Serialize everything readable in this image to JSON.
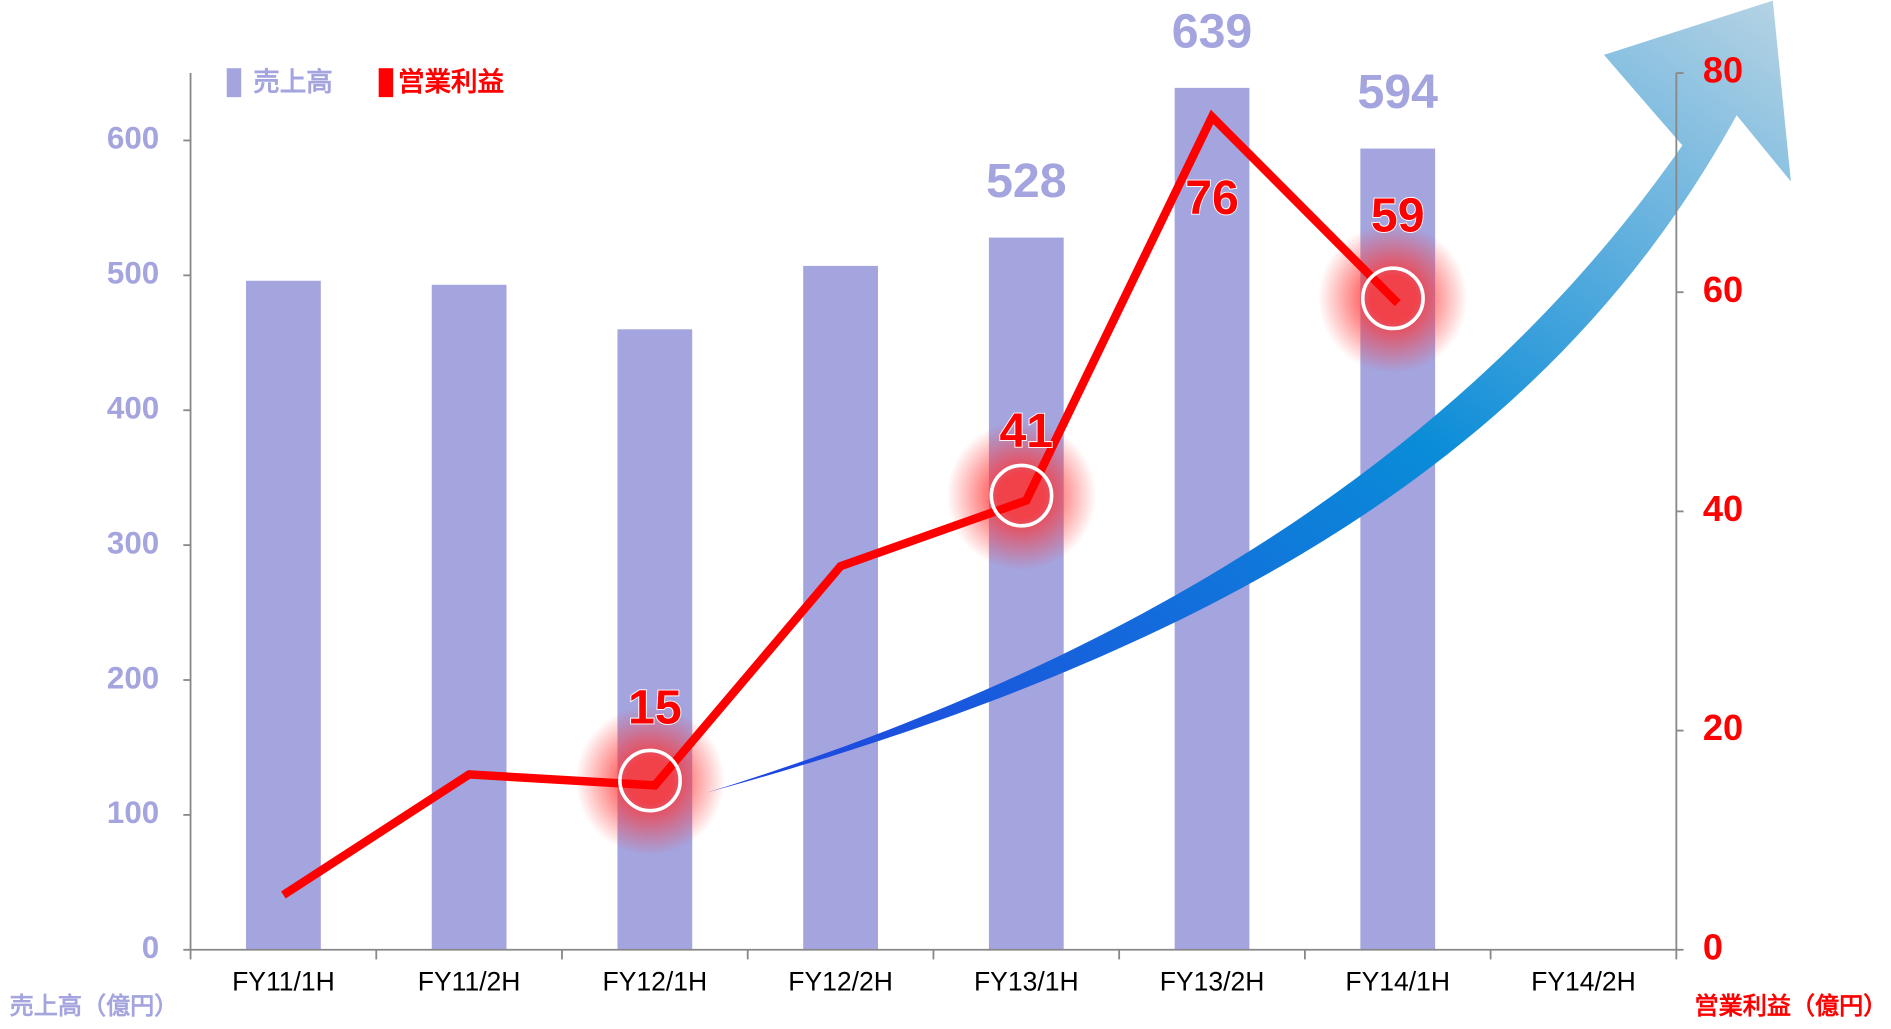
{
  "chart_data": {
    "type": "bar-line",
    "categories": [
      "FY11/1H",
      "FY11/2H",
      "FY12/1H",
      "FY12/2H",
      "FY13/1H",
      "FY13/2H",
      "FY14/1H",
      "FY14/2H"
    ],
    "series": [
      {
        "name": "売上高",
        "color": "#a4a4df",
        "type": "bar",
        "axis": "y",
        "values": [
          496,
          493,
          460,
          507,
          528,
          639,
          594,
          null
        ],
        "value_labels": [
          null,
          null,
          null,
          null,
          "528",
          "639",
          "594",
          null
        ]
      },
      {
        "name": "営業利益",
        "color": "#ff0000",
        "type": "line",
        "axis": "y2",
        "values": [
          5,
          16,
          15,
          35,
          41,
          76,
          59,
          null
        ],
        "value_labels": [
          null,
          null,
          "15",
          null,
          "41",
          "76",
          "59",
          null
        ]
      }
    ],
    "ylabel": "売上高（億円）",
    "y2label": "営業利益（億円）",
    "ylim": [
      0,
      650
    ],
    "yticks": [
      0,
      100,
      200,
      300,
      400,
      500,
      600
    ],
    "y2lim": [
      0,
      80
    ],
    "y2ticks": [
      0,
      20,
      40,
      60,
      80
    ],
    "grid": false,
    "legend": "upper left"
  }
}
